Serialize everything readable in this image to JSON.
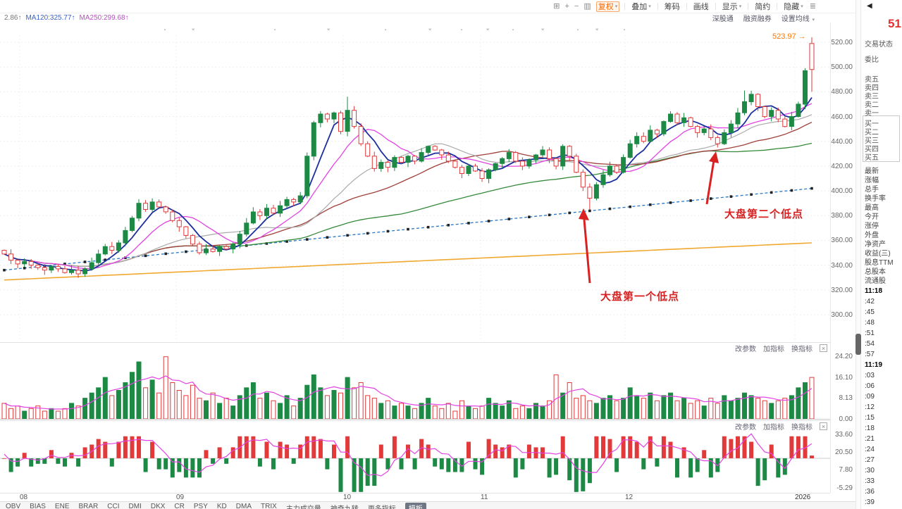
{
  "toolbar": {
    "buttons": [
      "复权",
      "叠加",
      "筹码",
      "画线",
      "显示",
      "简约",
      "隐藏"
    ],
    "icons": [
      "layout-panes",
      "zoom-in",
      "zoom-out",
      "split-view",
      "menu"
    ]
  },
  "legend": {
    "partial": "2.86↑",
    "ma120": "MA120:325.77↑",
    "ma250": "MA250:299.68↑"
  },
  "links": [
    "深股通",
    "融资融券",
    "设置均线"
  ],
  "annotations": {
    "high_label": "523.97",
    "low1": "大盘第一个低点",
    "low2": "大盘第二个低点"
  },
  "panel_header": [
    "改参数",
    "加指标",
    "换指标"
  ],
  "price_axis": [
    "520.00",
    "500.00",
    "480.00",
    "460.00",
    "440.00",
    "420.00",
    "400.00",
    "380.00",
    "360.00",
    "340.00",
    "320.00",
    "300.00"
  ],
  "volume_axis": [
    "24.20",
    "16.10",
    "8.13",
    "0.00"
  ],
  "indicator_axis": [
    "33.60",
    "20.50",
    "7.80",
    "-5.29"
  ],
  "dates": [
    "08",
    "09",
    "10",
    "11",
    "12",
    "2026"
  ],
  "tabs": [
    "OBV",
    "BIAS",
    "ENE",
    "BRAR",
    "CCI",
    "DMI",
    "DKX",
    "CR",
    "PSY",
    "KD",
    "DMA",
    "TRIX",
    "主力成交量",
    "神奇九转",
    "更多指标",
    "模板"
  ],
  "sidebar": {
    "price_partial": "51",
    "status_items": [
      "交易状态",
      "委比"
    ],
    "sell_levels": [
      "卖五",
      "卖四",
      "卖三",
      "卖二",
      "卖一"
    ],
    "buy_levels": [
      "买一",
      "买二",
      "买三",
      "买四",
      "买五"
    ],
    "fields": [
      "最新",
      "涨幅",
      "总手",
      "换手率",
      "最高",
      "今开",
      "涨停",
      "外盘",
      "净资产",
      "收益(三)",
      "股息TTM",
      "总股本",
      "流通股"
    ],
    "times": [
      "11:18",
      ":42",
      ":45",
      ":48",
      ":51",
      ":54",
      ":57",
      "11:19",
      ":03",
      ":06",
      ":09",
      ":12",
      ":15",
      ":18",
      ":21",
      ":24",
      ":27",
      ":30",
      ":33",
      ":36",
      ":39"
    ]
  },
  "chart_data": {
    "type": "candlestick",
    "x_axis_months": [
      "08",
      "09",
      "10",
      "11",
      "12",
      "2026"
    ],
    "price_range": [
      300,
      520
    ],
    "closes": [
      349,
      344,
      341,
      343,
      340,
      338,
      336,
      339,
      337,
      334,
      336,
      333,
      337,
      342,
      349,
      355,
      352,
      358,
      368,
      378,
      390,
      385,
      391,
      387,
      383,
      376,
      371,
      364,
      357,
      350,
      353,
      351,
      355,
      353,
      357,
      365,
      374,
      383,
      380,
      386,
      382,
      388,
      393,
      391,
      396,
      428,
      455,
      462,
      458,
      463,
      448,
      465,
      452,
      438,
      428,
      418,
      423,
      419,
      427,
      423,
      428,
      424,
      431,
      436,
      433,
      429,
      424,
      419,
      414,
      420,
      416,
      410,
      417,
      422,
      426,
      431,
      424,
      420,
      425,
      429,
      433,
      426,
      420,
      436,
      428,
      415,
      403,
      394,
      405,
      413,
      420,
      415,
      427,
      438,
      444,
      440,
      449,
      446,
      456,
      462,
      455,
      459,
      452,
      447,
      450,
      443,
      438,
      447,
      454,
      463,
      472,
      478,
      468,
      460,
      465,
      458,
      452,
      460,
      470,
      497,
      498
    ],
    "volumes": [
      6,
      4,
      5,
      3,
      4,
      5,
      3,
      4,
      3,
      4,
      6,
      5,
      8,
      10,
      12,
      16,
      9,
      11,
      14,
      18,
      22,
      12,
      15,
      10,
      24,
      14,
      11,
      9,
      13,
      8,
      7,
      10,
      6,
      8,
      5,
      9,
      12,
      14,
      8,
      10,
      7,
      6,
      9,
      5,
      8,
      13,
      17,
      12,
      9,
      11,
      10,
      16,
      12,
      14,
      9,
      8,
      6,
      7,
      5,
      6,
      5,
      4,
      6,
      8,
      5,
      4,
      6,
      3,
      7,
      5,
      4,
      5,
      8,
      6,
      5,
      7,
      4,
      5,
      4,
      6,
      5,
      7,
      17,
      10,
      14,
      8,
      9,
      7,
      6,
      8,
      9,
      7,
      8,
      12,
      9,
      8,
      10,
      7,
      9,
      10,
      7,
      8,
      6,
      7,
      5,
      8,
      6,
      9,
      7,
      8,
      10,
      9,
      8,
      7,
      6,
      7,
      8,
      9,
      12,
      14,
      16
    ],
    "special": {
      "45": [
        396,
        431,
        394,
        428
      ],
      "51": [
        448,
        476,
        444,
        465
      ],
      "87": [
        403,
        406,
        385,
        394
      ],
      "110": [
        463,
        481,
        461,
        472
      ],
      "119": [
        470,
        499,
        466,
        497
      ],
      "120": [
        519,
        523.97,
        480,
        498
      ]
    },
    "overlay_lines": {
      "orange": {
        "start": 328,
        "end": 358
      },
      "cost": {
        "start": 336,
        "end": 402
      }
    },
    "ma_windows": [
      5,
      10,
      20,
      30,
      60
    ],
    "colors": {
      "up": "#1c8a44",
      "down": "#e23a3a",
      "ma5": "#1b2f9e",
      "ma10": "#e243e2",
      "ma20": "#aaaaaa",
      "ma30": "#a0403a",
      "ma60": "#35893b",
      "slow": "#f0a830",
      "cost": "#2878c8",
      "annotation": "#d92121",
      "high_label": "#ff7700"
    },
    "volume_scale_max": 24.2,
    "indicator_baseline": 16
  }
}
